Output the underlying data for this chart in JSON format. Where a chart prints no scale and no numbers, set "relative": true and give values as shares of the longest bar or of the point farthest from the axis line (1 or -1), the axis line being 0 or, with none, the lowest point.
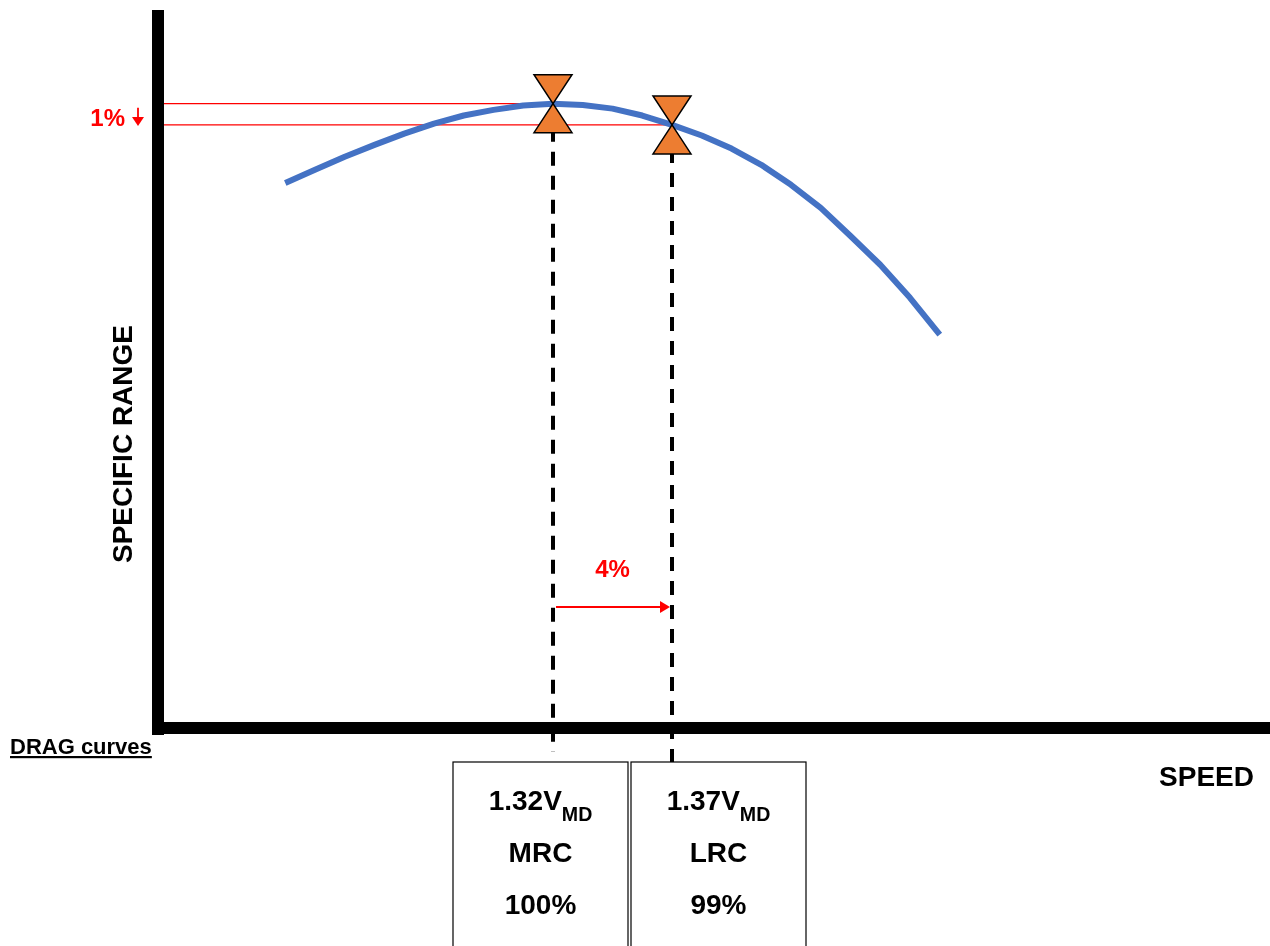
{
  "chart_data": {
    "type": "line",
    "relative": true,
    "ylabel": "SPECIFIC RANGE",
    "categories": [
      null,
      null,
      null,
      null,
      null,
      null,
      null,
      null,
      null,
      null,
      null,
      null,
      null,
      null,
      null,
      null,
      null,
      null,
      null,
      null,
      null,
      null,
      null
    ],
    "series": [
      {
        "color": "#4472c4",
        "values": [
          0.873,
          0.894,
          0.915,
          0.934,
          0.952,
          0.968,
          0.981,
          0.99,
          0.997,
          1,
          0.998,
          0.992,
          0.981,
          0.966,
          0.949,
          0.928,
          0.902,
          0.87,
          0.833,
          0.788,
          0.742,
          0.689,
          0.63
        ]
      }
    ],
    "ref_lines": [
      {
        "axis": "y",
        "value": 1,
        "color": "#ff0000"
      },
      {
        "axis": "y",
        "value": 0.966,
        "color": "#ff0000"
      }
    ],
    "annotations": [
      "1.32V$_{MD}$\nMRC\n100%",
      "1.37V$_{MD}$\nLRC\n99%",
      "1%",
      "4%",
      "DRAG curves",
      "SPEED"
    ]
  }
}
